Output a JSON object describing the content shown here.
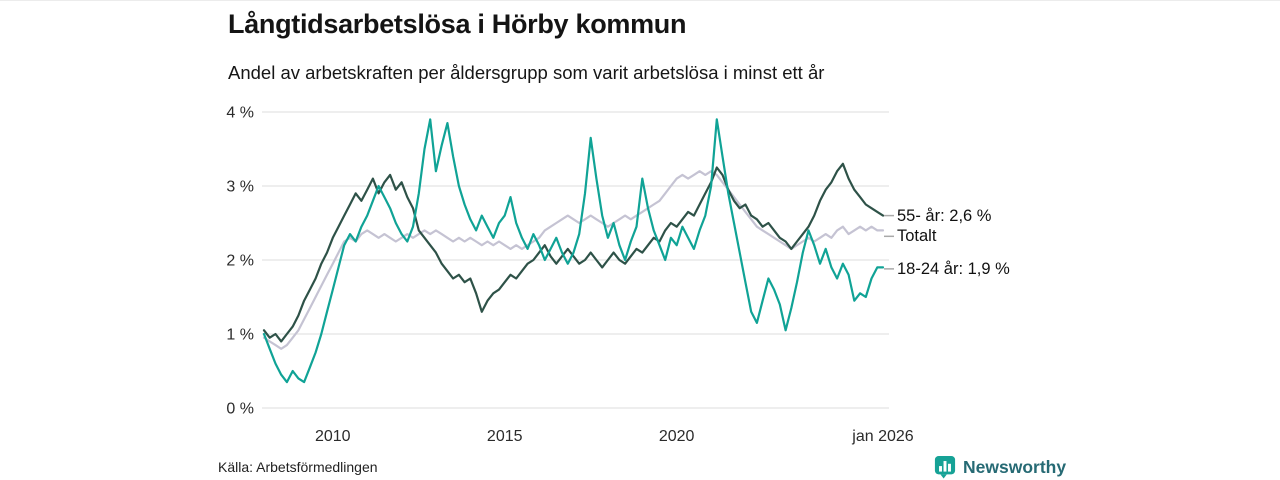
{
  "header": {
    "title": "Långtidsarbetslösa i Hörby kommun",
    "subtitle": "Andel av arbetskraften per åldersgrupp som varit arbetslösa i minst ett år"
  },
  "footer": {
    "source": "Källa: Arbetsförmedlingen",
    "brand": "Newsworthy"
  },
  "colors": {
    "grid": "#dedede",
    "connector": "#a9a9a9",
    "logo": "#16a296",
    "logo_bars": "#ffffff",
    "brand_text": "#266a74",
    "series_total": "#c5c3d3",
    "series_55": "#2e5248",
    "series_18_24": "#10a396"
  },
  "chart_data": {
    "type": "line",
    "title": "Långtidsarbetslösa i Hörby kommun",
    "subtitle": "Andel av arbetskraften per åldersgrupp som varit arbetslösa i minst ett år",
    "xlabel": "",
    "ylabel": "",
    "grid": "horizontal",
    "legend_position": "right-end-labels",
    "x_range": [
      2008,
      2026
    ],
    "ylim": [
      0,
      4
    ],
    "x_start": 2008,
    "x_step": 0.1666667,
    "y_ticks": [
      {
        "value": 0,
        "label": "0 %"
      },
      {
        "value": 1,
        "label": "1 %"
      },
      {
        "value": 2,
        "label": "2 %"
      },
      {
        "value": 3,
        "label": "3 %"
      },
      {
        "value": 4,
        "label": "4 %"
      }
    ],
    "x_ticks": [
      {
        "value": 2010,
        "label": "2010"
      },
      {
        "value": 2015,
        "label": "2015"
      },
      {
        "value": 2020,
        "label": "2020"
      },
      {
        "value": 2026,
        "label": "jan 2026"
      }
    ],
    "series": [
      {
        "id": "totalt",
        "name": "Totalt",
        "color": "#c5c3d3",
        "values": [
          0.95,
          0.9,
          0.85,
          0.8,
          0.85,
          0.95,
          1.05,
          1.2,
          1.35,
          1.5,
          1.65,
          1.8,
          1.95,
          2.1,
          2.25,
          2.3,
          2.25,
          2.35,
          2.4,
          2.35,
          2.3,
          2.35,
          2.3,
          2.25,
          2.3,
          2.35,
          2.3,
          2.35,
          2.4,
          2.35,
          2.4,
          2.35,
          2.3,
          2.25,
          2.3,
          2.25,
          2.3,
          2.25,
          2.2,
          2.25,
          2.2,
          2.25,
          2.2,
          2.15,
          2.2,
          2.15,
          2.2,
          2.25,
          2.3,
          2.4,
          2.45,
          2.5,
          2.55,
          2.6,
          2.55,
          2.5,
          2.55,
          2.6,
          2.55,
          2.5,
          2.45,
          2.5,
          2.55,
          2.6,
          2.55,
          2.6,
          2.65,
          2.7,
          2.75,
          2.8,
          2.9,
          3.0,
          3.1,
          3.15,
          3.1,
          3.15,
          3.2,
          3.15,
          3.2,
          3.15,
          3.05,
          2.95,
          2.85,
          2.75,
          2.65,
          2.55,
          2.45,
          2.4,
          2.35,
          2.3,
          2.25,
          2.2,
          2.15,
          2.2,
          2.25,
          2.3,
          2.25,
          2.3,
          2.35,
          2.3,
          2.4,
          2.45,
          2.35,
          2.4,
          2.45,
          2.4,
          2.45,
          2.4,
          2.4
        ]
      },
      {
        "id": "55-ar",
        "name": "55- år",
        "color": "#2e5248",
        "values": [
          1.05,
          0.95,
          1.0,
          0.9,
          1.0,
          1.1,
          1.25,
          1.45,
          1.6,
          1.75,
          1.95,
          2.1,
          2.3,
          2.45,
          2.6,
          2.75,
          2.9,
          2.8,
          2.95,
          3.1,
          2.9,
          3.05,
          3.15,
          2.95,
          3.05,
          2.85,
          2.7,
          2.4,
          2.3,
          2.2,
          2.1,
          1.95,
          1.85,
          1.75,
          1.8,
          1.7,
          1.75,
          1.55,
          1.3,
          1.45,
          1.55,
          1.6,
          1.7,
          1.8,
          1.75,
          1.85,
          1.95,
          2.0,
          2.1,
          2.2,
          2.05,
          1.95,
          2.05,
          2.15,
          2.05,
          1.95,
          2.0,
          2.1,
          2.0,
          1.9,
          2.0,
          2.1,
          2.0,
          1.95,
          2.05,
          2.15,
          2.1,
          2.2,
          2.3,
          2.25,
          2.4,
          2.5,
          2.45,
          2.55,
          2.65,
          2.6,
          2.75,
          2.9,
          3.05,
          3.25,
          3.15,
          2.95,
          2.8,
          2.7,
          2.75,
          2.6,
          2.55,
          2.45,
          2.5,
          2.4,
          2.3,
          2.25,
          2.15,
          2.25,
          2.35,
          2.45,
          2.6,
          2.8,
          2.95,
          3.05,
          3.2,
          3.3,
          3.1,
          2.95,
          2.85,
          2.75,
          2.7,
          2.65,
          2.6
        ]
      },
      {
        "id": "18-24-ar",
        "name": "18-24 år",
        "color": "#10a396",
        "values": [
          1.0,
          0.8,
          0.6,
          0.45,
          0.35,
          0.5,
          0.4,
          0.35,
          0.55,
          0.75,
          1.0,
          1.3,
          1.6,
          1.9,
          2.2,
          2.35,
          2.25,
          2.45,
          2.6,
          2.8,
          3.0,
          2.85,
          2.7,
          2.5,
          2.35,
          2.25,
          2.45,
          2.9,
          3.5,
          3.9,
          3.2,
          3.55,
          3.85,
          3.4,
          3.0,
          2.75,
          2.55,
          2.4,
          2.6,
          2.45,
          2.3,
          2.5,
          2.6,
          2.85,
          2.5,
          2.3,
          2.15,
          2.35,
          2.2,
          2.0,
          2.15,
          2.3,
          2.1,
          1.95,
          2.1,
          2.35,
          2.9,
          3.65,
          3.1,
          2.6,
          2.3,
          2.5,
          2.2,
          2.0,
          2.25,
          2.45,
          3.1,
          2.7,
          2.4,
          2.2,
          2.0,
          2.3,
          2.2,
          2.45,
          2.3,
          2.15,
          2.4,
          2.6,
          3.0,
          3.9,
          3.4,
          2.9,
          2.5,
          2.1,
          1.7,
          1.3,
          1.15,
          1.45,
          1.75,
          1.6,
          1.4,
          1.05,
          1.35,
          1.7,
          2.1,
          2.4,
          2.2,
          1.95,
          2.15,
          1.9,
          1.75,
          1.95,
          1.8,
          1.45,
          1.55,
          1.5,
          1.75,
          1.9,
          1.9
        ]
      }
    ],
    "annotations": [
      {
        "text": "55- år: 2,6 %",
        "y": 2.6
      },
      {
        "text": "Totalt",
        "y": 2.32
      },
      {
        "text": "18-24 år: 1,9 %",
        "y": 1.88
      }
    ]
  }
}
